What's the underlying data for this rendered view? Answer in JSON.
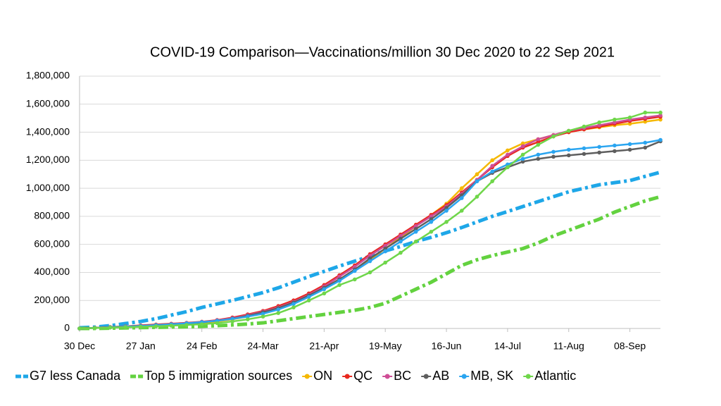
{
  "chart_data": {
    "type": "line",
    "title": "COVID-19 Comparison—Vaccinations/million 30 Dec 2020 to 22 Sep 2021",
    "categories": [
      "30 Dec",
      null,
      null,
      null,
      "27 Jan",
      null,
      null,
      null,
      "24 Feb",
      null,
      null,
      null,
      "24-Mar",
      null,
      null,
      null,
      "21-Apr",
      null,
      null,
      null,
      "19-May",
      null,
      null,
      null,
      "16-Jun",
      null,
      null,
      null,
      "14-Jul",
      null,
      null,
      null,
      "11-Aug",
      null,
      null,
      null,
      "08-Sep",
      null,
      null
    ],
    "ylim": [
      0,
      1800000
    ],
    "yticks": [
      0,
      {
        "value": 200000,
        "label": "200,000"
      },
      {
        "value": 400000,
        "label": "400,000"
      },
      {
        "value": 600000,
        "label": "600,000"
      },
      {
        "value": 800000,
        "label": "800,000"
      },
      {
        "value": 1000000,
        "label": "1,000,000"
      },
      {
        "value": 1200000,
        "label": "1,200,000"
      },
      {
        "value": 1400000,
        "label": "1,400,000"
      },
      {
        "value": 1600000,
        "label": "1,600,000"
      },
      {
        "value": 1800000,
        "label": "1,800,000"
      }
    ],
    "grid": true,
    "legend": "bottom",
    "series": [
      {
        "name": "G7 less Canada",
        "color": "#1ea7e8",
        "dashed": true,
        "values": [
          5000,
          10000,
          20000,
          35000,
          50000,
          70000,
          95000,
          120000,
          150000,
          175000,
          200000,
          228000,
          256000,
          290000,
          330000,
          370000,
          407000,
          445000,
          480000,
          515000,
          553000,
          585000,
          620000,
          650000,
          683000,
          720000,
          760000,
          800000,
          834000,
          870000,
          905000,
          940000,
          975000,
          1000000,
          1025000,
          1040000,
          1055000,
          1085000,
          1115000
        ]
      },
      {
        "name": "Top 5 immigration sources",
        "color": "#63d23f",
        "dashed": true,
        "values": [
          0,
          0,
          2000,
          4000,
          6000,
          8000,
          10000,
          12000,
          15000,
          20000,
          25000,
          32000,
          40000,
          55000,
          70000,
          85000,
          100000,
          115000,
          130000,
          150000,
          180000,
          230000,
          280000,
          330000,
          390000,
          450000,
          490000,
          520000,
          545000,
          570000,
          610000,
          660000,
          700000,
          740000,
          780000,
          830000,
          870000,
          910000,
          940000
        ]
      },
      {
        "name": "ON",
        "color": "#f5b800",
        "dashed": false,
        "values": [
          0,
          5000,
          10000,
          15000,
          20000,
          25000,
          30000,
          35000,
          40000,
          50000,
          65000,
          85000,
          110000,
          140000,
          180000,
          230000,
          290000,
          350000,
          420000,
          490000,
          570000,
          650000,
          730000,
          810000,
          890000,
          1000000,
          1100000,
          1200000,
          1270000,
          1320000,
          1350000,
          1380000,
          1400000,
          1420000,
          1435000,
          1450000,
          1460000,
          1475000,
          1490000
        ]
      },
      {
        "name": "QC",
        "color": "#e8281e",
        "dashed": false,
        "values": [
          0,
          5000,
          10000,
          15000,
          22000,
          28000,
          34000,
          40000,
          48000,
          60000,
          78000,
          100000,
          125000,
          160000,
          200000,
          250000,
          310000,
          380000,
          450000,
          530000,
          600000,
          670000,
          740000,
          810000,
          880000,
          970000,
          1060000,
          1150000,
          1230000,
          1290000,
          1330000,
          1370000,
          1400000,
          1420000,
          1440000,
          1460000,
          1480000,
          1495000,
          1510000
        ]
      },
      {
        "name": "BC",
        "color": "#cf4d96",
        "dashed": false,
        "values": [
          0,
          4000,
          8000,
          13000,
          18000,
          24000,
          30000,
          38000,
          46000,
          58000,
          74000,
          95000,
          120000,
          150000,
          190000,
          240000,
          300000,
          370000,
          440000,
          520000,
          590000,
          660000,
          730000,
          800000,
          870000,
          960000,
          1060000,
          1160000,
          1240000,
          1300000,
          1350000,
          1380000,
          1410000,
          1430000,
          1450000,
          1470000,
          1490000,
          1505000,
          1520000
        ]
      },
      {
        "name": "AB",
        "color": "#5e5e5e",
        "dashed": false,
        "values": [
          0,
          4000,
          8000,
          12000,
          17000,
          22000,
          28000,
          35000,
          44000,
          55000,
          70000,
          90000,
          115000,
          145000,
          185000,
          235000,
          290000,
          350000,
          420000,
          500000,
          570000,
          640000,
          710000,
          780000,
          860000,
          950000,
          1050000,
          1110000,
          1150000,
          1190000,
          1210000,
          1225000,
          1235000,
          1245000,
          1255000,
          1265000,
          1275000,
          1290000,
          1335000
        ]
      },
      {
        "name": "MB, SK",
        "color": "#2aa5f0",
        "dashed": false,
        "values": [
          0,
          4000,
          8000,
          13000,
          18000,
          24000,
          30000,
          37000,
          45000,
          55000,
          68000,
          85000,
          105000,
          135000,
          175000,
          225000,
          280000,
          340000,
          410000,
          480000,
          550000,
          620000,
          690000,
          760000,
          840000,
          930000,
          1050000,
          1120000,
          1170000,
          1210000,
          1240000,
          1260000,
          1275000,
          1285000,
          1295000,
          1305000,
          1315000,
          1325000,
          1345000
        ]
      },
      {
        "name": "Atlantic",
        "color": "#6fd64a",
        "dashed": false,
        "values": [
          0,
          3000,
          6000,
          9000,
          12000,
          15000,
          20000,
          25000,
          30000,
          38000,
          50000,
          65000,
          85000,
          110000,
          150000,
          200000,
          250000,
          310000,
          350000,
          400000,
          470000,
          540000,
          620000,
          690000,
          760000,
          840000,
          940000,
          1050000,
          1150000,
          1240000,
          1310000,
          1370000,
          1410000,
          1440000,
          1470000,
          1490000,
          1505000,
          1540000,
          1540000
        ]
      }
    ]
  }
}
